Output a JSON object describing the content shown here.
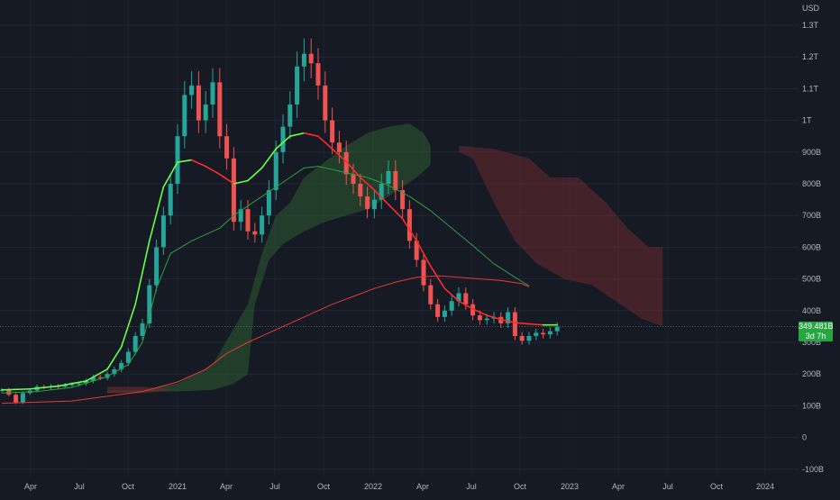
{
  "chart_data": {
    "type": "line",
    "currency_label": "USD",
    "y_axis": {
      "ticks": [
        "1.3T",
        "1.2T",
        "1.1T",
        "1T",
        "900B",
        "800B",
        "700B",
        "600B",
        "500B",
        "400B",
        "300B",
        "200B",
        "100B",
        "0",
        "-100B"
      ],
      "values": [
        1300,
        1200,
        1100,
        1000,
        900,
        800,
        700,
        600,
        500,
        400,
        300,
        200,
        100,
        0,
        -100
      ],
      "unit": "B USD"
    },
    "x_axis": {
      "ticks": [
        "Apr",
        "Jul",
        "Oct",
        "2021",
        "Apr",
        "Jul",
        "Oct",
        "2022",
        "Apr",
        "Jul",
        "Oct",
        "2023",
        "Apr",
        "Jul",
        "Oct",
        "2024"
      ]
    },
    "last_value_label": "349.481B",
    "countdown_label": "3d 7h",
    "last_value": 349.48,
    "colors": {
      "up": "#26a69a",
      "down": "#ef5350",
      "ma_fast_up": "#69ff47",
      "ma_fast_down": "#ff2a2a",
      "ma_mid": "#2e9e3e",
      "ma_slow": "#e53935",
      "cloud_bull": "#2e5d32",
      "cloud_bear": "#6a2b2e",
      "badge": "#26a641"
    },
    "series": [
      {
        "kind": "close",
        "values": [
          [
            0,
            150
          ],
          [
            2,
            135
          ],
          [
            4,
            110
          ],
          [
            6,
            140
          ],
          [
            8,
            148
          ],
          [
            10,
            160
          ],
          [
            12,
            158
          ],
          [
            14,
            162
          ],
          [
            16,
            160
          ],
          [
            18,
            165
          ],
          [
            20,
            168
          ],
          [
            22,
            170
          ],
          [
            24,
            178
          ],
          [
            26,
            190
          ],
          [
            28,
            188
          ],
          [
            30,
            200
          ],
          [
            32,
            215
          ],
          [
            34,
            235
          ],
          [
            36,
            270
          ],
          [
            38,
            320
          ],
          [
            40,
            360
          ],
          [
            42,
            480
          ],
          [
            44,
            600
          ],
          [
            46,
            700
          ],
          [
            48,
            800
          ],
          [
            50,
            950
          ],
          [
            52,
            1080
          ],
          [
            54,
            1110
          ],
          [
            56,
            1000
          ],
          [
            58,
            1050
          ],
          [
            60,
            1120
          ],
          [
            62,
            950
          ],
          [
            64,
            880
          ],
          [
            66,
            680
          ],
          [
            68,
            720
          ],
          [
            70,
            650
          ],
          [
            72,
            640
          ],
          [
            74,
            700
          ],
          [
            76,
            780
          ],
          [
            78,
            900
          ],
          [
            80,
            980
          ],
          [
            82,
            1050
          ],
          [
            84,
            1170
          ],
          [
            86,
            1210
          ],
          [
            88,
            1180
          ],
          [
            90,
            1110
          ],
          [
            92,
            1000
          ],
          [
            94,
            930
          ],
          [
            96,
            900
          ],
          [
            98,
            830
          ],
          [
            100,
            800
          ],
          [
            102,
            760
          ],
          [
            104,
            720
          ],
          [
            106,
            750
          ],
          [
            108,
            800
          ],
          [
            110,
            840
          ],
          [
            112,
            780
          ],
          [
            114,
            720
          ],
          [
            116,
            620
          ],
          [
            118,
            560
          ],
          [
            120,
            480
          ],
          [
            122,
            420
          ],
          [
            124,
            380
          ],
          [
            126,
            400
          ],
          [
            128,
            430
          ],
          [
            130,
            455
          ],
          [
            132,
            420
          ],
          [
            134,
            385
          ],
          [
            136,
            370
          ],
          [
            138,
            375
          ],
          [
            140,
            380
          ],
          [
            142,
            360
          ],
          [
            144,
            395
          ],
          [
            146,
            320
          ],
          [
            148,
            305
          ],
          [
            150,
            320
          ],
          [
            152,
            330
          ],
          [
            154,
            325
          ],
          [
            156,
            335
          ],
          [
            158,
            349
          ]
        ]
      },
      {
        "kind": "ma_fast",
        "values": [
          [
            0,
            150
          ],
          [
            8,
            153
          ],
          [
            16,
            162
          ],
          [
            24,
            178
          ],
          [
            30,
            215
          ],
          [
            34,
            285
          ],
          [
            38,
            420
          ],
          [
            42,
            620
          ],
          [
            46,
            790
          ],
          [
            50,
            868
          ],
          [
            54,
            875
          ],
          [
            58,
            855
          ],
          [
            62,
            830
          ],
          [
            66,
            800
          ],
          [
            70,
            810
          ],
          [
            74,
            850
          ],
          [
            78,
            910
          ],
          [
            82,
            950
          ],
          [
            86,
            960
          ],
          [
            90,
            950
          ],
          [
            94,
            910
          ],
          [
            98,
            870
          ],
          [
            102,
            820
          ],
          [
            106,
            780
          ],
          [
            110,
            735
          ],
          [
            114,
            690
          ],
          [
            118,
            620
          ],
          [
            122,
            540
          ],
          [
            126,
            470
          ],
          [
            130,
            430
          ],
          [
            134,
            405
          ],
          [
            138,
            385
          ],
          [
            142,
            372
          ],
          [
            146,
            362
          ],
          [
            150,
            358
          ],
          [
            154,
            355
          ],
          [
            158,
            355
          ]
        ]
      },
      {
        "kind": "ma_mid",
        "values": [
          [
            0,
            140
          ],
          [
            10,
            145
          ],
          [
            20,
            158
          ],
          [
            30,
            192
          ],
          [
            36,
            230
          ],
          [
            40,
            300
          ],
          [
            44,
            470
          ],
          [
            48,
            580
          ],
          [
            54,
            620
          ],
          [
            58,
            640
          ],
          [
            62,
            660
          ],
          [
            66,
            700
          ],
          [
            70,
            730
          ],
          [
            74,
            760
          ],
          [
            78,
            790
          ],
          [
            82,
            820
          ],
          [
            86,
            850
          ],
          [
            90,
            855
          ],
          [
            94,
            845
          ],
          [
            98,
            835
          ],
          [
            104,
            820
          ],
          [
            110,
            795
          ],
          [
            116,
            760
          ],
          [
            122,
            715
          ],
          [
            128,
            660
          ],
          [
            134,
            605
          ],
          [
            140,
            548
          ],
          [
            146,
            505
          ],
          [
            150,
            478
          ]
        ]
      },
      {
        "kind": "ma_slow",
        "values": [
          [
            0,
            108
          ],
          [
            20,
            115
          ],
          [
            40,
            145
          ],
          [
            50,
            175
          ],
          [
            58,
            215
          ],
          [
            64,
            265
          ],
          [
            70,
            300
          ],
          [
            76,
            330
          ],
          [
            82,
            360
          ],
          [
            88,
            390
          ],
          [
            94,
            420
          ],
          [
            100,
            445
          ],
          [
            106,
            470
          ],
          [
            112,
            490
          ],
          [
            118,
            505
          ],
          [
            124,
            510
          ],
          [
            130,
            505
          ],
          [
            136,
            500
          ],
          [
            142,
            495
          ],
          [
            148,
            485
          ],
          [
            150,
            475
          ]
        ]
      }
    ]
  }
}
